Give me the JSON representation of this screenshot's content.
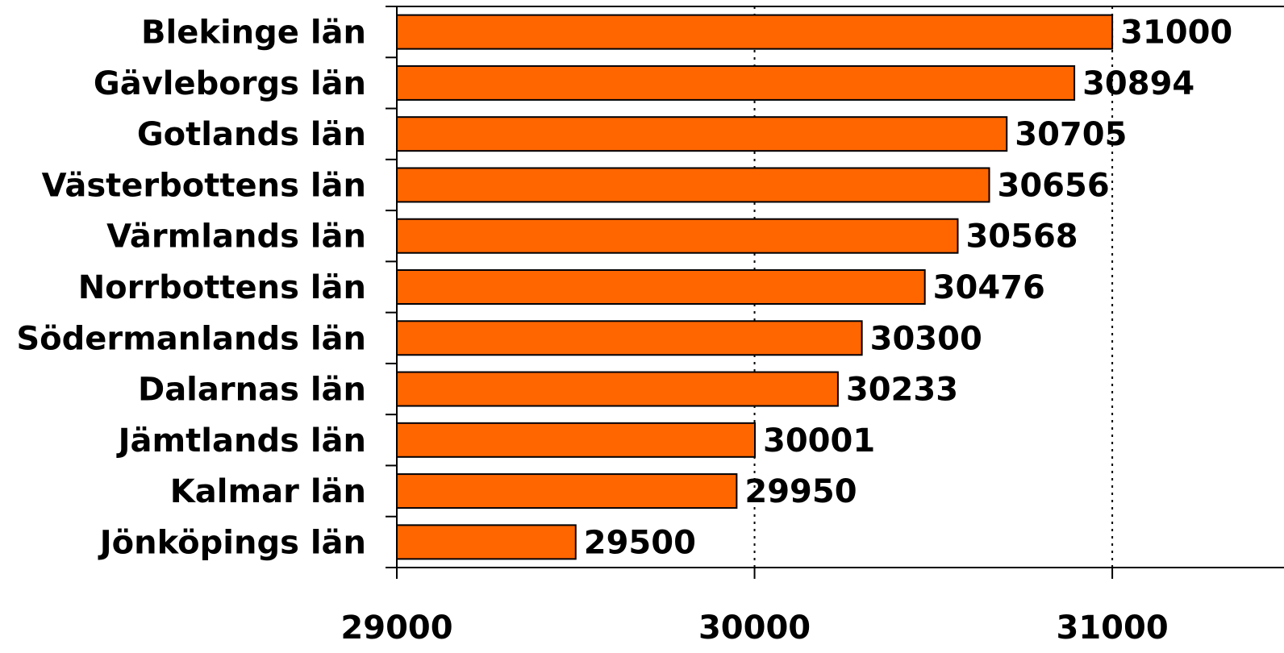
{
  "chart_data": {
    "type": "bar",
    "orientation": "horizontal",
    "categories": [
      "Blekinge län",
      "Gävleborgs län",
      "Gotlands län",
      "Västerbottens län",
      "Värmlands län",
      "Norrbottens län",
      "Södermanlands län",
      "Dalarnas län",
      "Jämtlands län",
      "Kalmar län",
      "Jönköpings län"
    ],
    "values": [
      31000,
      30894,
      30705,
      30656,
      30568,
      30476,
      30300,
      30233,
      30001,
      29950,
      29500
    ],
    "value_labels": [
      "31000",
      "30894",
      "30705",
      "30656",
      "30568",
      "30476",
      "30300",
      "30233",
      "30001",
      "29950",
      "29500"
    ],
    "xlim": [
      29000,
      31480
    ],
    "xticks": [
      29000,
      30000,
      31000
    ],
    "xtick_labels": [
      "29000",
      "30000",
      "31000"
    ],
    "grid": "vertical dotted at major ticks",
    "legend": "none",
    "title": "",
    "xlabel": "",
    "ylabel": "",
    "colors": {
      "bar_fill": "#ff6600",
      "bar_stroke": "#000000",
      "axis": "#000000",
      "grid": "#000000"
    }
  }
}
